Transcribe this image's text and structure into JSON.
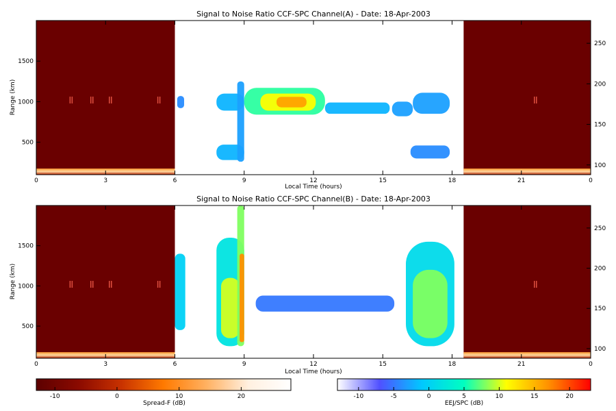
{
  "chart_data": [
    {
      "type": "heatmap",
      "title": "Signal to Noise Ratio CCF-SPC Channel(A) - Date: 18-Apr-2003",
      "xlabel": "Local Time (hours)",
      "ylabel": "Range (km)",
      "x_ticks": [
        "0",
        "3",
        "6",
        "9",
        "12",
        "15",
        "18",
        "21",
        "0"
      ],
      "x_tick_values": [
        0,
        3,
        6,
        9,
        12,
        15,
        18,
        21,
        24
      ],
      "y_ticks": [
        "500",
        "1000",
        "1500"
      ],
      "y_tick_values": [
        500,
        1000,
        1500
      ],
      "y2_ticks": [
        "100",
        "150",
        "200",
        "250"
      ],
      "y2_tick_values": [
        100,
        150,
        200,
        250
      ],
      "xlim": [
        0,
        24
      ],
      "ylim": [
        100,
        2000
      ],
      "y2lim": [
        88,
        278
      ],
      "spreadF_intervals": [
        [
          0,
          6
        ],
        [
          18.5,
          24
        ]
      ],
      "spreadF_ground_clutter_km": 150,
      "spreadF_echo_marks": [
        {
          "t": 1.5,
          "range_km": 1020
        },
        {
          "t": 2.4,
          "range_km": 1020
        },
        {
          "t": 3.2,
          "range_km": 1020
        },
        {
          "t": 5.3,
          "range_km": 1020
        },
        {
          "t": 21.6,
          "range_km": 1020
        }
      ],
      "echo_regions": [
        {
          "t_start": 6.1,
          "t_end": 6.4,
          "range_min_km": 920,
          "range_max_km": 1070,
          "snr_db": -4
        },
        {
          "t_start": 7.8,
          "t_end": 9.0,
          "range_min_km": 890,
          "range_max_km": 1100,
          "snr_db": -2
        },
        {
          "t_start": 7.8,
          "t_end": 9.0,
          "range_min_km": 280,
          "range_max_km": 470,
          "snr_db": -2
        },
        {
          "t_start": 8.7,
          "t_end": 9.0,
          "range_min_km": 260,
          "range_max_km": 1250,
          "snr_db": -3
        },
        {
          "t_start": 9.0,
          "t_end": 12.5,
          "range_min_km": 840,
          "range_max_km": 1170,
          "snr_db": 6
        },
        {
          "t_start": 9.7,
          "t_end": 12.1,
          "range_min_km": 890,
          "range_max_km": 1100,
          "snr_db": 11
        },
        {
          "t_start": 10.4,
          "t_end": 11.7,
          "range_min_km": 930,
          "range_max_km": 1060,
          "snr_db": 16
        },
        {
          "t_start": 12.5,
          "t_end": 15.3,
          "range_min_km": 850,
          "range_max_km": 990,
          "snr_db": -2
        },
        {
          "t_start": 15.4,
          "t_end": 16.3,
          "range_min_km": 820,
          "range_max_km": 1000,
          "snr_db": -3
        },
        {
          "t_start": 16.3,
          "t_end": 17.9,
          "range_min_km": 850,
          "range_max_km": 1110,
          "snr_db": -3
        },
        {
          "t_start": 16.2,
          "t_end": 17.9,
          "range_min_km": 300,
          "range_max_km": 460,
          "snr_db": -4
        }
      ]
    },
    {
      "type": "heatmap",
      "title": "Signal to Noise Ratio CCF-SPC Channel(B) - Date: 18-Apr-2003",
      "xlabel": "Local Time (hours)",
      "ylabel": "Range (km)",
      "x_ticks": [
        "0",
        "3",
        "6",
        "9",
        "12",
        "15",
        "18",
        "21",
        "0"
      ],
      "x_tick_values": [
        0,
        3,
        6,
        9,
        12,
        15,
        18,
        21,
        24
      ],
      "y_ticks": [
        "500",
        "1000",
        "1500"
      ],
      "y_tick_values": [
        500,
        1000,
        1500
      ],
      "y2_ticks": [
        "100",
        "150",
        "200",
        "250"
      ],
      "y2_tick_values": [
        100,
        150,
        200,
        250
      ],
      "xlim": [
        0,
        24
      ],
      "ylim": [
        100,
        2000
      ],
      "y2lim": [
        88,
        278
      ],
      "spreadF_intervals": [
        [
          0,
          6
        ],
        [
          18.5,
          24
        ]
      ],
      "spreadF_ground_clutter_km": 150,
      "spreadF_echo_marks": [
        {
          "t": 1.5,
          "range_km": 1020
        },
        {
          "t": 2.4,
          "range_km": 1020
        },
        {
          "t": 3.2,
          "range_km": 1020
        },
        {
          "t": 5.3,
          "range_km": 1020
        },
        {
          "t": 21.6,
          "range_km": 1020
        }
      ],
      "echo_regions": [
        {
          "t_start": 6.0,
          "t_end": 6.45,
          "range_min_km": 450,
          "range_max_km": 1400,
          "snr_db": 0
        },
        {
          "t_start": 7.8,
          "t_end": 9.0,
          "range_min_km": 250,
          "range_max_km": 1600,
          "snr_db": 2
        },
        {
          "t_start": 8.0,
          "t_end": 8.8,
          "range_min_km": 350,
          "range_max_km": 1100,
          "snr_db": 10
        },
        {
          "t_start": 8.7,
          "t_end": 9.0,
          "range_min_km": 250,
          "range_max_km": 2000,
          "snr_db": 8
        },
        {
          "t_start": 8.8,
          "t_end": 9.0,
          "range_min_km": 300,
          "range_max_km": 1400,
          "snr_db": 17
        },
        {
          "t_start": 9.5,
          "t_end": 15.5,
          "range_min_km": 680,
          "range_max_km": 880,
          "snr_db": -5
        },
        {
          "t_start": 16.0,
          "t_end": 18.1,
          "range_min_km": 250,
          "range_max_km": 1550,
          "snr_db": 1
        },
        {
          "t_start": 16.3,
          "t_end": 17.8,
          "range_min_km": 350,
          "range_max_km": 1200,
          "snr_db": 8
        }
      ]
    }
  ],
  "colorbars": {
    "spread_f": {
      "label": "Spread-F (dB)",
      "ticks": [
        "-10",
        "0",
        "10",
        "20"
      ],
      "tick_values": [
        -10,
        0,
        10,
        20
      ],
      "range": [
        -13,
        28
      ],
      "colors": [
        "#5c0000",
        "#8b0a00",
        "#c83200",
        "#ff7a00",
        "#ffb060",
        "#fff0e0",
        "#ffffff"
      ]
    },
    "eej_spc": {
      "label": "EEJ/SPC (dB)",
      "ticks": [
        "-10",
        "-5",
        "0",
        "5",
        "10",
        "15",
        "20"
      ],
      "tick_values": [
        -10,
        -5,
        0,
        5,
        10,
        15,
        20
      ],
      "range": [
        -13,
        23
      ],
      "colors": [
        "#ffffff",
        "#5050ff",
        "#00c8ff",
        "#00ffc0",
        "#ffff00",
        "#ff9000",
        "#ff0000"
      ]
    }
  }
}
